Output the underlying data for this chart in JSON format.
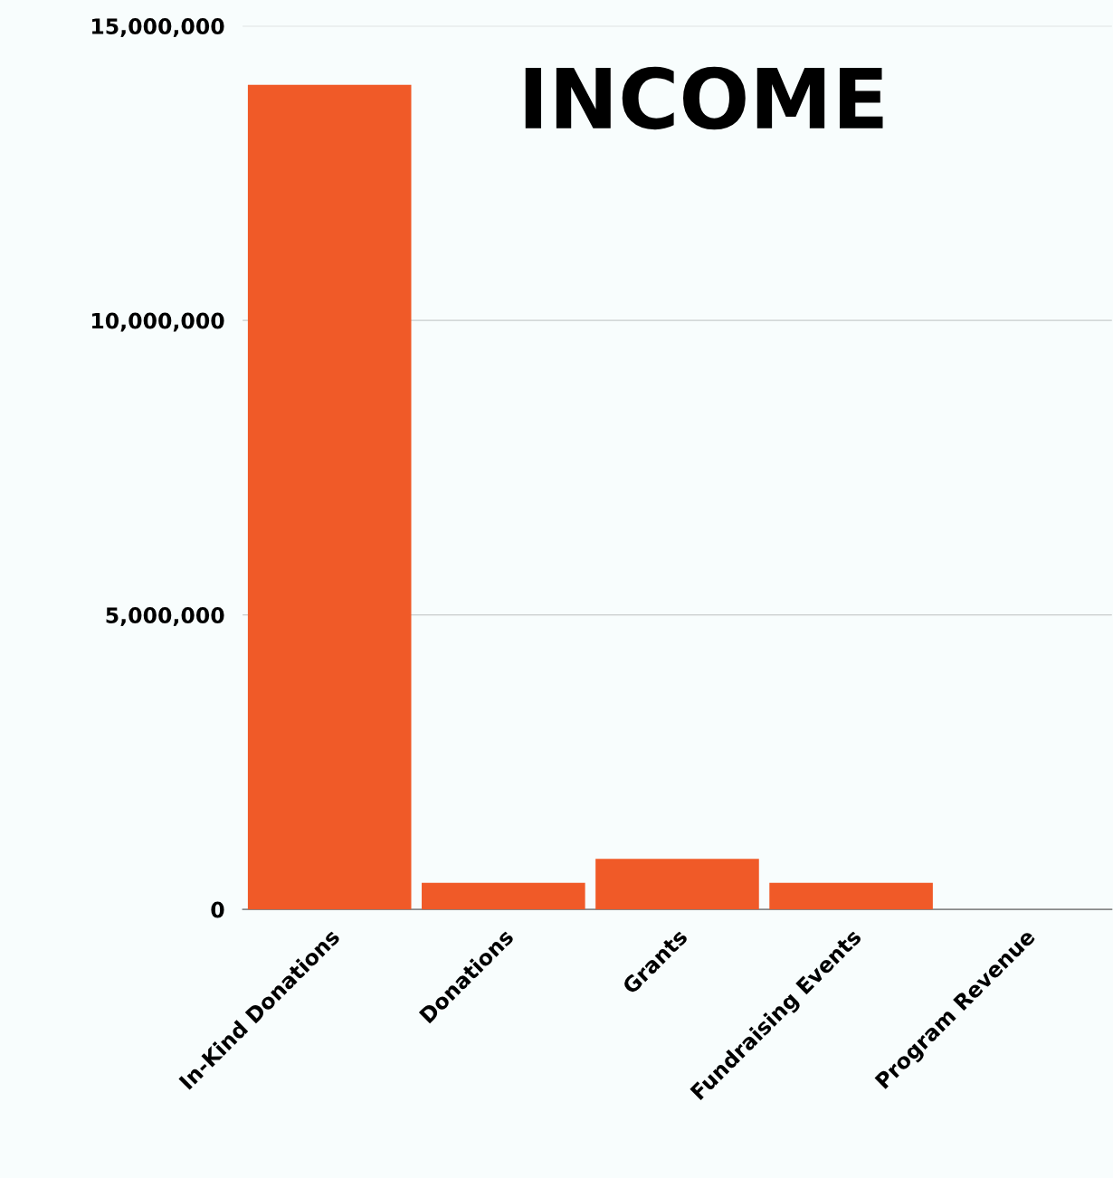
{
  "chart_data": {
    "type": "bar",
    "title": "INCOME",
    "categories": [
      "In-Kind Donations",
      "Donations",
      "Grants",
      "Fundraising Events",
      "Program Revenue"
    ],
    "values": [
      14000000,
      450000,
      860000,
      450000,
      0
    ],
    "color": "#f05a28",
    "ylim": [
      0,
      15000000
    ],
    "yticks": [
      {
        "value": 0,
        "label": "0"
      },
      {
        "value": 5000000,
        "label": "5,000,000"
      },
      {
        "value": 10000000,
        "label": "10,000,000"
      },
      {
        "value": 15000000,
        "label": "15,000,000"
      }
    ],
    "grid": "y",
    "legend": false
  }
}
